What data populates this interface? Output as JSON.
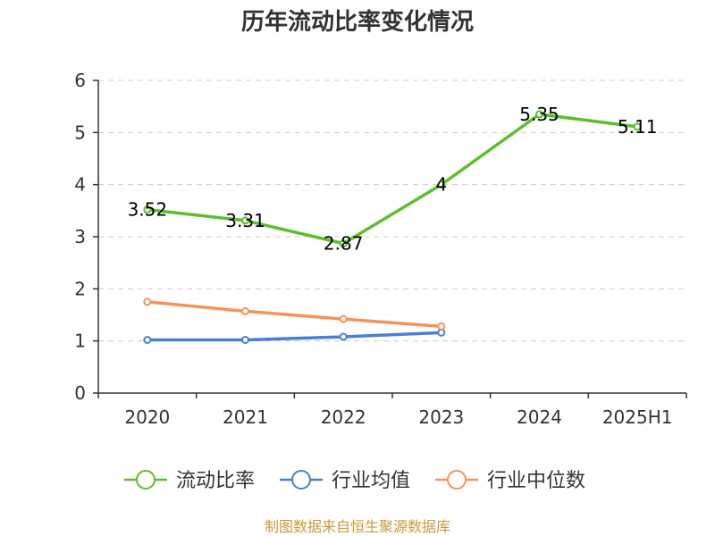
{
  "chart_data": {
    "type": "line",
    "title": "历年流动比率变化情况",
    "categories": [
      "2020",
      "2021",
      "2022",
      "2023",
      "2024",
      "2025H1"
    ],
    "ylim": [
      0,
      6
    ],
    "yticks": [
      0,
      1,
      2,
      3,
      4,
      5,
      6
    ],
    "grid": true,
    "legend_position": "bottom",
    "series": [
      {
        "name": "流动比率",
        "color": "#5cbf2a",
        "values": [
          3.52,
          3.31,
          2.87,
          4,
          5.35,
          5.11
        ],
        "labels": [
          "3.52",
          "3.31",
          "2.87",
          "4",
          "5.35",
          "5.11"
        ]
      },
      {
        "name": "行业均值",
        "color": "#4a7fd6",
        "values": [
          1.02,
          1.02,
          1.08,
          1.16,
          null,
          null
        ]
      },
      {
        "name": "行业中位数",
        "color": "#f5935a",
        "values": [
          1.75,
          1.57,
          1.42,
          1.28,
          null,
          null
        ]
      }
    ],
    "source": "制图数据来自恒生聚源数据库"
  }
}
